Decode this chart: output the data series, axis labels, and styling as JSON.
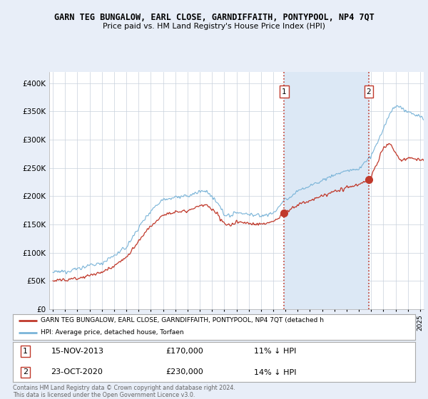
{
  "title": "GARN TEG BUNGALOW, EARL CLOSE, GARNDIFFAITH, PONTYPOOL, NP4 7QT",
  "subtitle": "Price paid vs. HM Land Registry's House Price Index (HPI)",
  "legend_line1": "GARN TEG BUNGALOW, EARL CLOSE, GARNDIFFAITH, PONTYPOOL, NP4 7QT (detached h",
  "legend_line2": "HPI: Average price, detached house, Torfaen",
  "sale1_date": "15-NOV-2013",
  "sale1_price": "£170,000",
  "sale1_pct": "11% ↓ HPI",
  "sale2_date": "23-OCT-2020",
  "sale2_price": "£230,000",
  "sale2_pct": "14% ↓ HPI",
  "footer": "Contains HM Land Registry data © Crown copyright and database right 2024.\nThis data is licensed under the Open Government Licence v3.0.",
  "hpi_color": "#7ab4d8",
  "price_color": "#c0392b",
  "vline_color": "#c0392b",
  "background_color": "#e8eef8",
  "plot_bg": "#ffffff",
  "shade_color": "#dce8f5",
  "ylim": [
    0,
    420000
  ],
  "yticks": [
    0,
    50000,
    100000,
    150000,
    200000,
    250000,
    300000,
    350000,
    400000
  ],
  "sale1_x": 2013.88,
  "sale2_x": 2020.81,
  "sale1_marker_y": 170000,
  "sale2_marker_y": 230000,
  "xmin": 1995.0,
  "xmax": 2025.3
}
